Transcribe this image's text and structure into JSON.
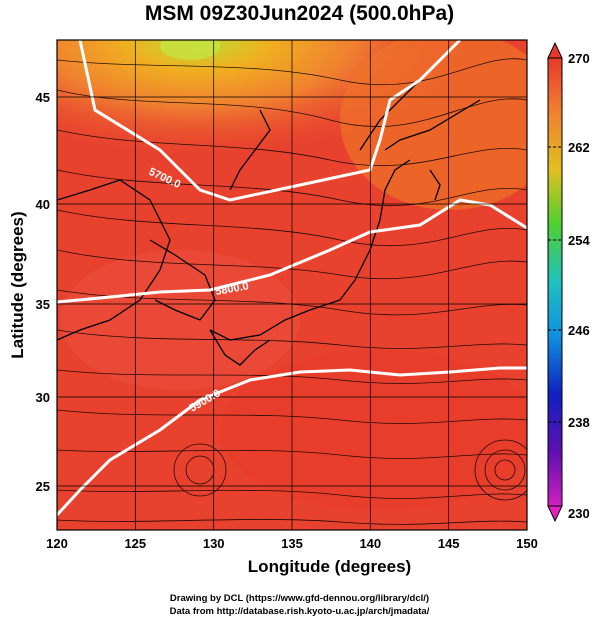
{
  "title": "MSM 09Z30Jun2024 (500.0hPa)",
  "x_axis": {
    "label": "Longitude (degrees)",
    "ticks": [
      "120",
      "125",
      "130",
      "135",
      "140",
      "145",
      "150"
    ]
  },
  "y_axis": {
    "label": "Latitude  (degrees)",
    "ticks": [
      "25",
      "30",
      "35",
      "40",
      "45"
    ]
  },
  "colorbar": {
    "ticks": [
      "270",
      "262",
      "254",
      "246",
      "238",
      "230"
    ]
  },
  "contours": [
    {
      "label": "5700.0"
    },
    {
      "label": "5800.0"
    },
    {
      "label": "5900.0"
    }
  ],
  "credits": {
    "line1": "Drawing by DCL (https://www.gfd-dennou.org/library/dcl/)",
    "line2": "Data from http://database.rish.kyoto-u.ac.jp/arch/jmadata/"
  },
  "colors": {
    "warm": "#e8392f",
    "mid": "#f07a2a",
    "cool": "#f0b020",
    "green": "#60d040",
    "land_outline": "#000000",
    "contour": "#ffffff"
  }
}
